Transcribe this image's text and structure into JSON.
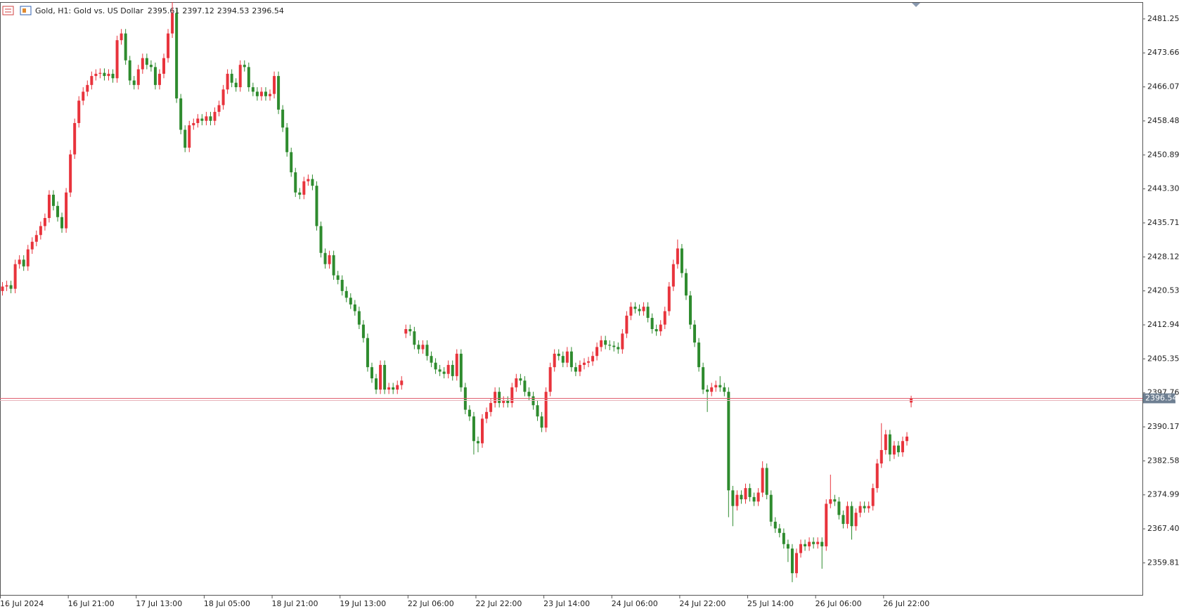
{
  "chart_data": {
    "type": "candlestick",
    "title": "Gold, H1:  Gold vs. US Dollar",
    "up_color": "#e8333c",
    "down_color": "#2e8b2e",
    "price_line_color": "#e06070",
    "categories": [
      "16 Jul 2024",
      null,
      null,
      null,
      null,
      null,
      null,
      null,
      null,
      null,
      null,
      null,
      null,
      null,
      null,
      null,
      "16 Jul 21:00",
      null,
      null,
      null,
      null,
      null,
      null,
      null,
      null,
      null,
      null,
      null,
      null,
      null,
      null,
      null,
      "17 Jul 13:00",
      null,
      null,
      null,
      null,
      null,
      null,
      null,
      null,
      null,
      null,
      null,
      null,
      null,
      null,
      null,
      "18 Jul 05:00",
      null,
      null,
      null,
      null,
      null,
      null,
      null,
      null,
      null,
      null,
      null,
      null,
      null,
      null,
      null,
      "18 Jul 21:00",
      null,
      null,
      null,
      null,
      null,
      null,
      null,
      null,
      null,
      null,
      null,
      null,
      null,
      null,
      null,
      "19 Jul 13:00",
      null,
      null,
      null,
      null,
      null,
      null,
      null,
      null,
      null,
      null,
      null,
      null,
      null,
      null,
      null,
      "22 Jul 06:00",
      null,
      null,
      null,
      null,
      null,
      null,
      null,
      null,
      null,
      null,
      null,
      null,
      null,
      null,
      null,
      "22 Jul 22:00",
      null,
      null,
      null,
      null,
      null,
      null,
      null,
      null,
      null,
      null,
      null,
      null,
      null,
      null,
      null,
      "23 Jul 14:00",
      null,
      null,
      null,
      null,
      null,
      null,
      null,
      null,
      null,
      null,
      null,
      null,
      null,
      null,
      null,
      "24 Jul 06:00",
      null,
      null,
      null,
      null,
      null,
      null,
      null,
      null,
      null,
      null,
      null,
      null,
      null,
      null,
      null,
      "24 Jul 22:00",
      null,
      null,
      null,
      null,
      null,
      null,
      null,
      null,
      null,
      null,
      null,
      null,
      null,
      null,
      null,
      "25 Jul 14:00",
      null,
      null,
      null,
      null,
      null,
      null,
      null,
      null,
      null,
      null,
      null,
      null,
      null,
      null,
      null,
      "26 Jul 06:00",
      null,
      null,
      null,
      null,
      null,
      null,
      null,
      null,
      null,
      null,
      null,
      null,
      null,
      null,
      null,
      "26 Jul 22:00",
      null,
      null,
      null,
      null,
      null,
      null
    ],
    "open": [
      2420.5,
      2421.5,
      2421.8,
      2421.0,
      2426.5,
      2427.5,
      2426.0,
      2429.8,
      2431.5,
      2433.0,
      2435.0,
      2436.8,
      2442.0,
      2439.5,
      2437.0,
      2434.5,
      2442.5,
      2451.0,
      2458.0,
      2463.0,
      2465.0,
      2466.5,
      2468.5,
      2469.0,
      2469.2,
      2468.5,
      2469.0,
      2468.0,
      2476.5,
      2478.0,
      2472.0,
      2467.5,
      2466.5,
      2470.0,
      2472.5,
      2471.0,
      2470.5,
      2466.5,
      2469.0,
      2472.5,
      2478.0,
      2482.5,
      2463.5,
      2456.5,
      2452.5,
      2457.5,
      2458.0,
      2459.0,
      2458.5,
      2459.5,
      2458.5,
      2460.5,
      2462.0,
      2465.5,
      2469.0,
      2467.0,
      2466.0,
      2471.0,
      2470.5,
      2466.0,
      2465.0,
      2464.0,
      2465.0,
      2464.0,
      2464.5,
      2468.5,
      2461.0,
      2457.0,
      2451.5,
      2447.0,
      2442.5,
      2442.0,
      2445.0,
      2445.5,
      2444.0,
      2435.0,
      2429.0,
      2426.5,
      2428.5,
      2424.0,
      2423.0,
      2420.5,
      2419.0,
      2417.5,
      2416.0,
      2413.0,
      2410.0,
      2403.5,
      2401.0,
      2398.5,
      2404.0,
      2398.5,
      2399.0,
      2398.5,
      2399.5,
      2411.0,
      2412.0,
      2411.5,
      2408.5,
      2407.5,
      2408.5,
      2406.0,
      2404.5,
      2403.0,
      2402.5,
      2402.0,
      2404.0,
      2401.5,
      2406.5,
      2399.0,
      2394.0,
      2392.5,
      2387.0,
      2386.5,
      2392.0,
      2393.5,
      2395.5,
      2398.0,
      2395.5,
      2396.0,
      2395.5,
      2399.0,
      2401.0,
      2400.5,
      2398.0,
      2397.0,
      2395.0,
      2392.5,
      2390.0,
      2398.0,
      2403.5,
      2406.5,
      2406.0,
      2404.5,
      2407.0,
      2403.5,
      2402.5,
      2404.0,
      2404.5,
      2404.8,
      2406.0,
      2408.0,
      2409.5,
      2408.5,
      2408.3,
      2408.0,
      2407.5,
      2411.0,
      2415.0,
      2417.0,
      2416.5,
      2416.0,
      2417.0,
      2414.5,
      2412.0,
      2411.5,
      2413.0,
      2416.0,
      2421.5,
      2426.5,
      2430.0,
      2424.5,
      2419.5,
      2413.0,
      2409.0,
      2403.5,
      2398.5,
      2398.0,
      2399.0,
      2399.5,
      2399.0,
      2398.0,
      2376.0,
      2372.5,
      2375.0,
      2374.0,
      2376.5,
      2374.5,
      2373.5,
      2375.5,
      2381.0,
      2375.0,
      2369.0,
      2367.5,
      2366.5,
      2364.0,
      2363.0,
      2357.5,
      2362.0,
      2364.0,
      2363.5,
      2364.5,
      2364.0,
      2364.5,
      2363.5,
      2373.0,
      2374.0,
      2373.5,
      2370.5,
      2368.5,
      2372.5,
      2368.0,
      2371.0,
      2372.5,
      2372.0,
      2372.5,
      2376.5,
      2382.0,
      2385.0,
      2388.5,
      2384.0,
      2386.0,
      2384.5,
      2387.0,
      2395.61
    ],
    "high": [
      2422.5,
      2422.8,
      2422.8,
      2427.5,
      2428.5,
      2428.5,
      2430.8,
      2432.5,
      2434.0,
      2436.0,
      2437.8,
      2443.0,
      2443.0,
      2440.5,
      2438.0,
      2443.5,
      2452.0,
      2459.0,
      2464.0,
      2466.0,
      2467.5,
      2469.5,
      2470.0,
      2470.2,
      2470.2,
      2470.0,
      2470.0,
      2477.5,
      2479.0,
      2479.0,
      2473.0,
      2468.5,
      2471.0,
      2473.5,
      2473.5,
      2472.0,
      2471.5,
      2470.0,
      2473.5,
      2479.0,
      2485.0,
      2483.5,
      2464.5,
      2457.5,
      2458.5,
      2459.0,
      2460.0,
      2460.0,
      2460.5,
      2460.5,
      2461.5,
      2463.0,
      2466.5,
      2470.0,
      2470.0,
      2468.0,
      2472.0,
      2472.0,
      2471.5,
      2467.0,
      2466.0,
      2466.0,
      2466.0,
      2465.5,
      2469.5,
      2469.5,
      2462.0,
      2458.0,
      2452.5,
      2448.0,
      2443.5,
      2446.0,
      2446.5,
      2446.5,
      2445.0,
      2436.0,
      2430.0,
      2429.5,
      2429.5,
      2425.0,
      2424.0,
      2421.5,
      2420.0,
      2418.5,
      2417.0,
      2414.0,
      2411.0,
      2404.5,
      2402.0,
      2405.0,
      2405.0,
      2400.0,
      2400.0,
      2400.5,
      2401.5,
      2413.0,
      2413.0,
      2412.5,
      2409.5,
      2409.5,
      2409.5,
      2407.0,
      2405.5,
      2404.0,
      2403.5,
      2405.0,
      2405.0,
      2407.5,
      2407.5,
      2400.0,
      2395.0,
      2393.5,
      2388.0,
      2393.0,
      2394.5,
      2396.5,
      2399.0,
      2399.0,
      2397.0,
      2397.0,
      2400.0,
      2402.0,
      2402.0,
      2401.5,
      2399.0,
      2398.0,
      2396.0,
      2393.5,
      2399.0,
      2404.5,
      2407.5,
      2407.5,
      2407.0,
      2408.0,
      2408.0,
      2404.5,
      2405.0,
      2405.5,
      2405.8,
      2407.0,
      2409.0,
      2410.5,
      2410.5,
      2409.5,
      2409.3,
      2409.0,
      2412.0,
      2416.0,
      2418.0,
      2418.0,
      2417.5,
      2418.0,
      2418.0,
      2415.5,
      2413.0,
      2414.0,
      2417.0,
      2422.5,
      2427.5,
      2432.0,
      2431.0,
      2425.5,
      2420.5,
      2414.0,
      2410.0,
      2404.5,
      2399.5,
      2400.0,
      2400.5,
      2401.5,
      2400.0,
      2399.0,
      2377.0,
      2376.0,
      2376.0,
      2377.5,
      2377.5,
      2375.5,
      2376.5,
      2382.5,
      2382.0,
      2376.0,
      2370.0,
      2368.5,
      2367.5,
      2365.0,
      2364.0,
      2363.0,
      2365.0,
      2365.0,
      2365.5,
      2365.5,
      2365.5,
      2365.5,
      2374.0,
      2379.5,
      2375.0,
      2374.5,
      2371.5,
      2373.5,
      2373.5,
      2372.0,
      2373.5,
      2373.5,
      2373.5,
      2377.5,
      2383.0,
      2391.0,
      2389.5,
      2389.5,
      2387.0,
      2387.0,
      2388.0,
      2389.0,
      2397.12
    ],
    "low": [
      2419.5,
      2420.5,
      2420.0,
      2420.0,
      2425.5,
      2425.0,
      2425.0,
      2428.8,
      2430.5,
      2432.0,
      2434.0,
      2435.8,
      2438.5,
      2436.0,
      2433.5,
      2433.5,
      2441.5,
      2450.0,
      2457.0,
      2462.0,
      2464.0,
      2465.5,
      2467.5,
      2468.0,
      2467.5,
      2467.5,
      2467.0,
      2467.0,
      2475.5,
      2471.0,
      2466.5,
      2465.5,
      2465.5,
      2469.0,
      2470.0,
      2469.5,
      2465.5,
      2465.5,
      2468.0,
      2471.5,
      2477.0,
      2462.5,
      2455.5,
      2451.5,
      2451.5,
      2456.5,
      2457.0,
      2457.5,
      2457.5,
      2457.5,
      2457.5,
      2459.5,
      2461.0,
      2464.5,
      2466.0,
      2465.0,
      2465.0,
      2469.5,
      2465.0,
      2464.0,
      2463.0,
      2463.0,
      2463.0,
      2463.0,
      2463.5,
      2460.0,
      2456.0,
      2450.5,
      2446.0,
      2441.5,
      2441.0,
      2441.0,
      2444.0,
      2443.0,
      2434.0,
      2428.0,
      2425.5,
      2425.5,
      2423.0,
      2422.0,
      2419.5,
      2418.0,
      2416.5,
      2415.0,
      2412.0,
      2409.0,
      2402.5,
      2400.0,
      2397.5,
      2397.5,
      2397.5,
      2397.5,
      2397.5,
      2397.5,
      2398.5,
      2410.0,
      2410.5,
      2407.5,
      2406.5,
      2406.5,
      2405.0,
      2403.5,
      2402.0,
      2401.5,
      2401.0,
      2401.0,
      2400.5,
      2400.5,
      2398.0,
      2393.0,
      2391.5,
      2384.0,
      2384.5,
      2385.5,
      2391.0,
      2392.5,
      2394.5,
      2394.5,
      2394.5,
      2394.5,
      2394.5,
      2398.0,
      2399.5,
      2397.0,
      2396.0,
      2394.0,
      2391.5,
      2389.0,
      2389.0,
      2397.0,
      2402.5,
      2405.0,
      2403.5,
      2403.5,
      2402.5,
      2401.5,
      2401.5,
      2403.0,
      2403.5,
      2403.8,
      2405.0,
      2407.0,
      2407.5,
      2407.3,
      2407.0,
      2406.5,
      2406.5,
      2410.0,
      2414.0,
      2415.5,
      2415.0,
      2415.0,
      2413.5,
      2411.0,
      2410.5,
      2410.5,
      2412.0,
      2415.0,
      2420.5,
      2425.5,
      2423.5,
      2418.5,
      2412.0,
      2408.0,
      2402.5,
      2397.5,
      2393.5,
      2397.0,
      2398.0,
      2398.0,
      2397.0,
      2370.0,
      2368.0,
      2371.5,
      2373.0,
      2373.0,
      2373.5,
      2372.5,
      2372.5,
      2374.5,
      2374.0,
      2368.0,
      2366.5,
      2365.5,
      2363.0,
      2360.0,
      2355.5,
      2356.5,
      2361.0,
      2362.5,
      2362.5,
      2363.0,
      2363.0,
      2358.5,
      2362.5,
      2372.0,
      2372.5,
      2369.5,
      2367.5,
      2367.5,
      2365.0,
      2367.0,
      2370.0,
      2371.0,
      2371.0,
      2371.5,
      2375.5,
      2381.0,
      2384.0,
      2382.5,
      2383.0,
      2383.5,
      2383.5,
      2386.0,
      2394.53
    ],
    "close": [
      2421.5,
      2421.8,
      2421.0,
      2426.5,
      2427.5,
      2426.0,
      2429.8,
      2431.5,
      2433.0,
      2435.0,
      2436.8,
      2442.0,
      2439.5,
      2437.0,
      2434.5,
      2442.5,
      2451.0,
      2458.0,
      2463.0,
      2465.0,
      2466.5,
      2468.5,
      2469.0,
      2469.2,
      2468.5,
      2469.0,
      2468.0,
      2476.5,
      2478.0,
      2472.0,
      2467.5,
      2466.5,
      2470.0,
      2472.5,
      2471.0,
      2470.5,
      2466.5,
      2469.0,
      2472.5,
      2478.0,
      2482.5,
      2463.5,
      2456.5,
      2452.5,
      2457.5,
      2458.0,
      2459.0,
      2458.5,
      2459.5,
      2458.5,
      2460.5,
      2462.0,
      2465.5,
      2469.0,
      2467.0,
      2466.0,
      2471.0,
      2470.5,
      2466.0,
      2465.0,
      2464.0,
      2465.0,
      2464.0,
      2464.5,
      2468.5,
      2461.0,
      2457.0,
      2451.5,
      2447.0,
      2442.5,
      2442.0,
      2445.0,
      2445.5,
      2444.0,
      2435.0,
      2429.0,
      2426.5,
      2428.5,
      2424.0,
      2423.0,
      2420.5,
      2419.0,
      2417.5,
      2416.0,
      2413.0,
      2410.0,
      2403.5,
      2401.0,
      2398.5,
      2404.0,
      2398.5,
      2399.0,
      2398.5,
      2399.5,
      2400.5,
      2412.0,
      2411.5,
      2408.5,
      2407.5,
      2408.5,
      2406.0,
      2404.5,
      2403.0,
      2402.5,
      2402.0,
      2404.0,
      2401.5,
      2406.5,
      2399.0,
      2394.0,
      2392.5,
      2387.0,
      2386.5,
      2392.0,
      2393.5,
      2395.5,
      2398.0,
      2395.5,
      2396.0,
      2395.5,
      2399.0,
      2401.0,
      2400.5,
      2398.0,
      2397.0,
      2395.0,
      2392.5,
      2390.0,
      2398.0,
      2403.5,
      2406.5,
      2406.0,
      2404.5,
      2407.0,
      2403.5,
      2402.5,
      2404.0,
      2404.5,
      2404.8,
      2406.0,
      2408.0,
      2409.5,
      2408.5,
      2408.3,
      2408.0,
      2407.5,
      2411.0,
      2415.0,
      2417.0,
      2416.5,
      2416.0,
      2417.0,
      2414.5,
      2412.0,
      2411.5,
      2413.0,
      2416.0,
      2421.5,
      2426.5,
      2430.0,
      2424.5,
      2419.5,
      2413.0,
      2409.0,
      2403.5,
      2398.5,
      2398.0,
      2399.0,
      2399.5,
      2399.0,
      2398.0,
      2376.0,
      2372.5,
      2375.0,
      2374.0,
      2376.5,
      2374.5,
      2373.5,
      2375.5,
      2381.0,
      2375.0,
      2369.0,
      2367.5,
      2366.5,
      2364.0,
      2363.0,
      2357.5,
      2362.0,
      2364.0,
      2363.5,
      2364.5,
      2364.0,
      2364.5,
      2363.5,
      2373.0,
      2374.0,
      2373.5,
      2370.5,
      2368.5,
      2372.5,
      2368.0,
      2371.0,
      2372.5,
      2372.0,
      2372.5,
      2376.5,
      2382.0,
      2385.0,
      2388.5,
      2384.0,
      2386.0,
      2384.5,
      2387.0,
      2388.0,
      2396.54
    ],
    "ylim": [
      2352.5,
      2485.0
    ],
    "yticks": [
      2481.25,
      2473.66,
      2466.07,
      2458.48,
      2450.89,
      {
        "value": 2443.3,
        "label": "2443.30"
      },
      2435.71,
      2428.12,
      2420.53,
      2412.94,
      2405.35,
      2397.76,
      2390.17,
      2382.58,
      2374.99,
      {
        "value": 2367.4,
        "label": "2367.40"
      },
      2359.81
    ]
  }
}
